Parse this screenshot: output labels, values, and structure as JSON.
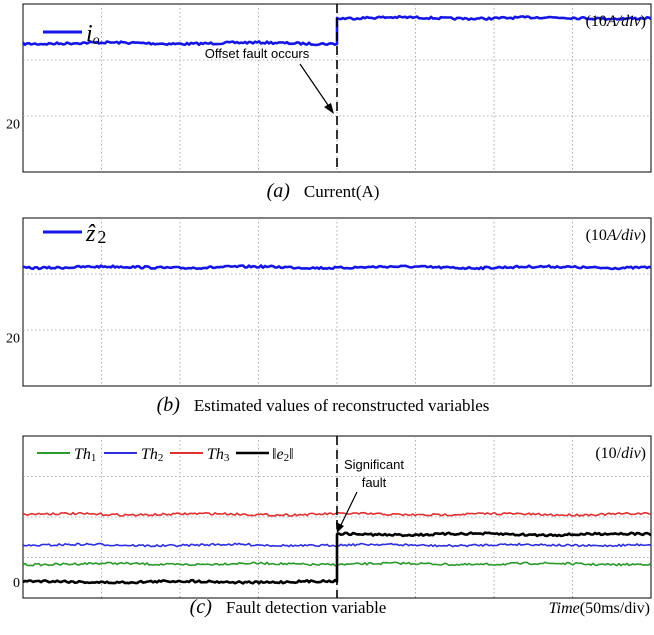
{
  "chart_data": [
    {
      "type": "line",
      "panel": "a",
      "caption_letter": "a",
      "caption": "Current(A)",
      "scale_label_pre": "(10",
      "scale_label_italic": "A/div",
      "scale_label_post": ")",
      "legend": [
        {
          "symbol": "i",
          "sub": "o"
        }
      ],
      "ytick_label": "20",
      "ylim": [
        0,
        30
      ],
      "series": [
        {
          "color": "#1515e6",
          "segments": [
            {
              "x": [
                0,
                5
              ],
              "y": [
                23,
                23
              ]
            },
            {
              "x": [
                5,
                10
              ],
              "y": [
                27.5,
                27.5
              ]
            }
          ]
        }
      ],
      "annotation": {
        "text": "Offset fault occurs"
      },
      "step_x": 5
    },
    {
      "type": "line",
      "panel": "b",
      "caption_letter": "b",
      "caption": "Estimated values of reconstructed variables",
      "scale_label_pre": "(10",
      "scale_label_italic": "A/div",
      "scale_label_post": ")",
      "legend": [
        {
          "symbol": "ẑ",
          "sub": "2"
        }
      ],
      "ytick_label": "20",
      "ylim": [
        0,
        30
      ],
      "series": [
        {
          "color": "#1515e6",
          "segments": [
            {
              "x": [
                0,
                10
              ],
              "y": [
                21.2,
                21.2
              ]
            }
          ]
        }
      ]
    },
    {
      "type": "line",
      "panel": "c",
      "caption_letter": "c",
      "caption": "Fault detection variable",
      "scale_label_pre": "(10/",
      "scale_label_italic": "div",
      "scale_label_post": ")",
      "legend": [
        {
          "symbol": "Th",
          "sub": "1",
          "color": "#2a9a2a"
        },
        {
          "symbol": "Th",
          "sub": "2",
          "color": "#2e2ee0"
        },
        {
          "symbol": "Th",
          "sub": "3",
          "color": "#e03030"
        },
        {
          "symbol": "‖e",
          "sub": "2",
          "post": "‖",
          "color": "#000000"
        }
      ],
      "ytick_label": "0",
      "ylim": [
        -3,
        27
      ],
      "xlabel_italic": "Time",
      "xlabel": "(50ms/div)",
      "series": [
        {
          "name": "Th1",
          "color": "#2a9a2a",
          "segments": [
            {
              "x": [
                0,
                10
              ],
              "y": [
                3.3,
                3.3
              ]
            }
          ]
        },
        {
          "name": "Th2",
          "color": "#2e2ee0",
          "segments": [
            {
              "x": [
                0,
                10
              ],
              "y": [
                6.8,
                6.8
              ]
            }
          ]
        },
        {
          "name": "Th3",
          "color": "#e03030",
          "segments": [
            {
              "x": [
                0,
                10
              ],
              "y": [
                12.5,
                12.5
              ]
            }
          ]
        },
        {
          "name": "e2",
          "color": "#000000",
          "segments": [
            {
              "x": [
                0,
                5
              ],
              "y": [
                0,
                0
              ]
            },
            {
              "x": [
                5,
                10
              ],
              "y": [
                8.8,
                8.8
              ]
            }
          ]
        }
      ],
      "annotation": {
        "text_line1": "Significant",
        "text_line2": "fault"
      },
      "step_x": 5
    }
  ]
}
